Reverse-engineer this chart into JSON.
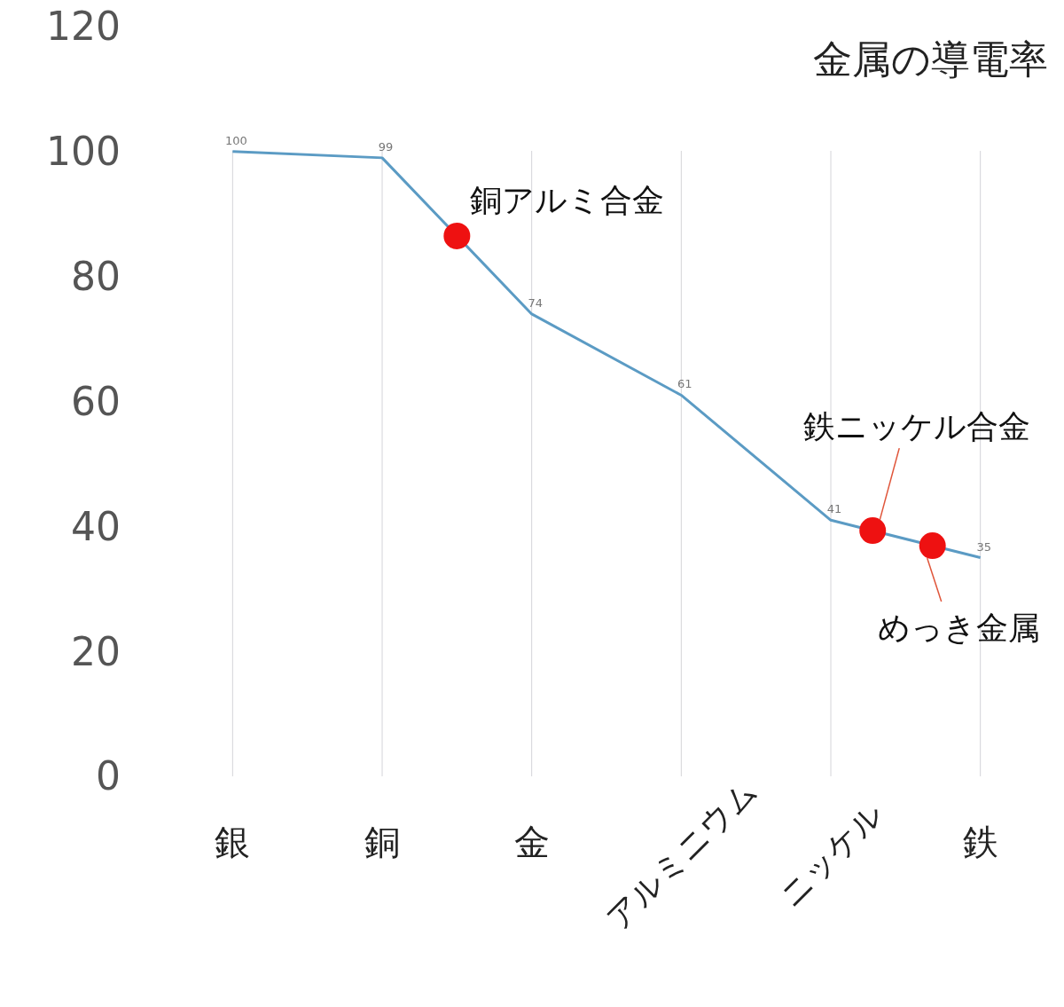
{
  "chart_data": {
    "type": "line",
    "title": "金属の導電率",
    "categories": [
      "銀",
      "銅",
      "金",
      "アルミニウム",
      "ニッケル",
      "鉄"
    ],
    "ylim": [
      0,
      120
    ],
    "yticks": [
      0,
      20,
      40,
      60,
      80,
      100,
      120
    ],
    "grid": "x",
    "marker": "none",
    "series": [
      {
        "color": "#5b9bc4",
        "values": [
          100,
          99,
          74,
          61,
          41,
          35
        ],
        "value_labels": [
          "100",
          "99",
          "74",
          "61",
          "41",
          "35"
        ]
      }
    ],
    "annotations": [
      "銅アルミ合金",
      "鉄ニッケル合金",
      "めっき金属"
    ]
  }
}
